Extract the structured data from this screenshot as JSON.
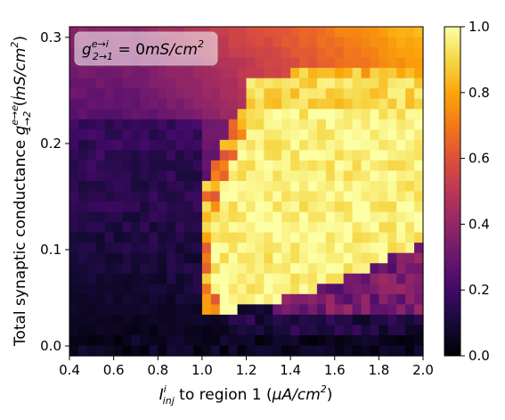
{
  "chart_data": {
    "type": "heatmap",
    "xlabel_parts": {
      "symbol": "I",
      "sup": "i",
      "sub": "inj",
      "text": " to region 1 (",
      "unit": "μA/cm",
      "unit_sup": "2",
      "close": ")"
    },
    "ylabel_parts": {
      "text": "Total synaptic conductance ",
      "symbol": "g",
      "sup": "e→e, i",
      "sub": "1→2",
      "unit_open": " (",
      "unit": "mS/cm",
      "unit_sup": "2",
      "close": ")"
    },
    "annotation_parts": {
      "symbol": "g",
      "sup": "e→i",
      "sub": "2→1",
      "rest": " = 0",
      "unit": "mS/cm",
      "unit_sup": "2"
    },
    "x_ticks": [
      "0.4",
      "0.6",
      "0.8",
      "1.0",
      "1.2",
      "1.4",
      "1.6",
      "1.8",
      "2.0"
    ],
    "y_ticks": [
      "0.0",
      "0.1",
      "0.2",
      "0.3"
    ],
    "colorbar_ticks": [
      "0.0",
      "0.2",
      "0.4",
      "0.6",
      "0.8",
      "1.0"
    ],
    "xlim": [
      0.4,
      2.0
    ],
    "ylim": [
      0.0,
      0.31
    ],
    "clim": [
      0.0,
      1.0
    ],
    "x_range": [
      0.4,
      2.0
    ],
    "y_range": [
      0.0,
      0.31
    ],
    "colormap": "inferno",
    "n_cols": 40,
    "n_rows": 32,
    "description": "Synchrony-like value as function of injected current (x) and synaptic conductance (y); high (≈1) region lies right of a boundary near I≈1.05–1.4 for g between ≈0.04 and ≈0.23; low values at bottom and left; moderate/orange values at top-right."
  }
}
